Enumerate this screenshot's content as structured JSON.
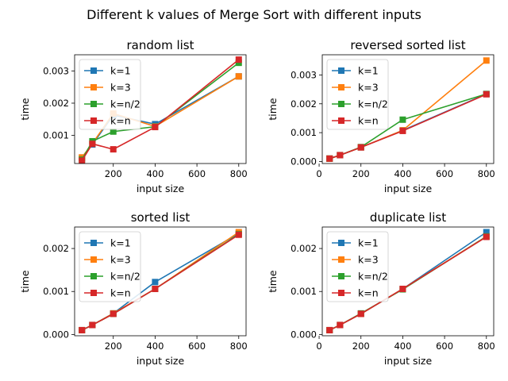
{
  "figure_title": "Different k values of Merge Sort with different inputs",
  "colors": {
    "k=1": "#1f77b4",
    "k=3": "#ff7f0e",
    "k=n/2": "#2ca02c",
    "k=n": "#d62728"
  },
  "chart_data": [
    {
      "type": "line",
      "title": "random list",
      "xlabel": "input size",
      "ylabel": "time",
      "x": [
        50,
        100,
        200,
        400,
        800
      ],
      "xlim": [
        15,
        835
      ],
      "ylim": [
        0.00013,
        0.0035
      ],
      "xticks": [
        200,
        400,
        600,
        800
      ],
      "xtick_labels": [
        "200",
        "400",
        "600",
        "800"
      ],
      "yticks": [
        0.001,
        0.002,
        0.003
      ],
      "ytick_labels": [
        "0.001",
        "0.002",
        "0.003"
      ],
      "legend": "top-left",
      "series": [
        {
          "name": "k=1",
          "color": "#1f77b4",
          "values": [
            0.0003,
            0.00072,
            0.00163,
            0.00135,
            0.00283
          ]
        },
        {
          "name": "k=3",
          "color": "#ff7f0e",
          "values": [
            0.00032,
            0.00075,
            0.00168,
            0.00128,
            0.00283
          ]
        },
        {
          "name": "k=n/2",
          "color": "#2ca02c",
          "values": [
            0.00025,
            0.00082,
            0.00112,
            0.00127,
            0.00325
          ]
        },
        {
          "name": "k=n",
          "color": "#d62728",
          "values": [
            0.00022,
            0.00074,
            0.00057,
            0.00126,
            0.00335
          ]
        }
      ]
    },
    {
      "type": "line",
      "title": "reversed sorted list",
      "xlabel": "input size",
      "ylabel": "time",
      "x": [
        50,
        100,
        200,
        400,
        800
      ],
      "xlim": [
        15,
        835
      ],
      "ylim": [
        -7e-05,
        0.0037
      ],
      "xticks": [
        0,
        200,
        400,
        600,
        800
      ],
      "xtick_labels": [
        "0",
        "200",
        "400",
        "600",
        "800"
      ],
      "yticks": [
        0,
        0.001,
        0.002,
        0.003
      ],
      "ytick_labels": [
        "0.000",
        "0.001",
        "0.002",
        "0.003"
      ],
      "legend": "top-left",
      "series": [
        {
          "name": "k=1",
          "color": "#1f77b4",
          "values": [
            0.0001,
            0.00022,
            0.00049,
            0.00108,
            0.00234
          ]
        },
        {
          "name": "k=3",
          "color": "#ff7f0e",
          "values": [
            0.0001,
            0.00022,
            0.00049,
            0.00108,
            0.0035
          ]
        },
        {
          "name": "k=n/2",
          "color": "#2ca02c",
          "values": [
            0.0001,
            0.00022,
            0.0005,
            0.00145,
            0.00234
          ]
        },
        {
          "name": "k=n",
          "color": "#d62728",
          "values": [
            0.0001,
            0.00022,
            0.00049,
            0.00106,
            0.00233
          ]
        }
      ]
    },
    {
      "type": "line",
      "title": "sorted list",
      "xlabel": "input size",
      "ylabel": "time",
      "x": [
        50,
        100,
        200,
        400,
        800
      ],
      "xlim": [
        15,
        835
      ],
      "ylim": [
        -3e-05,
        0.0025
      ],
      "xticks": [
        200,
        400,
        600,
        800
      ],
      "xtick_labels": [
        "200",
        "400",
        "600",
        "800"
      ],
      "yticks": [
        0,
        0.001,
        0.002
      ],
      "ytick_labels": [
        "0.000",
        "0.001",
        "0.002"
      ],
      "legend": "top-left",
      "series": [
        {
          "name": "k=1",
          "color": "#1f77b4",
          "values": [
            0.0001,
            0.00022,
            0.00049,
            0.00122,
            0.00235
          ]
        },
        {
          "name": "k=3",
          "color": "#ff7f0e",
          "values": [
            0.0001,
            0.00022,
            0.00049,
            0.00106,
            0.00238
          ]
        },
        {
          "name": "k=n/2",
          "color": "#2ca02c",
          "values": [
            0.0001,
            0.00022,
            0.00048,
            0.00106,
            0.00233
          ]
        },
        {
          "name": "k=n",
          "color": "#d62728",
          "values": [
            0.0001,
            0.00022,
            0.00048,
            0.00106,
            0.00232
          ]
        }
      ]
    },
    {
      "type": "line",
      "title": "duplicate list",
      "xlabel": "input size",
      "ylabel": "time",
      "x": [
        50,
        100,
        200,
        400,
        800
      ],
      "xlim": [
        15,
        835
      ],
      "ylim": [
        -3e-05,
        0.0025
      ],
      "xticks": [
        0,
        200,
        400,
        600,
        800
      ],
      "xtick_labels": [
        "0",
        "200",
        "400",
        "600",
        "800"
      ],
      "yticks": [
        0,
        0.001,
        0.002
      ],
      "ytick_labels": [
        "0.000",
        "0.001",
        "0.002"
      ],
      "legend": "top-left",
      "series": [
        {
          "name": "k=1",
          "color": "#1f77b4",
          "values": [
            0.0001,
            0.00022,
            0.00048,
            0.00106,
            0.00238
          ]
        },
        {
          "name": "k=3",
          "color": "#ff7f0e",
          "values": [
            0.0001,
            0.00022,
            0.00048,
            0.00106,
            0.00228
          ]
        },
        {
          "name": "k=n/2",
          "color": "#2ca02c",
          "values": [
            0.0001,
            0.00022,
            0.00049,
            0.00105,
            0.00228
          ]
        },
        {
          "name": "k=n",
          "color": "#d62728",
          "values": [
            0.0001,
            0.00022,
            0.00048,
            0.00106,
            0.00227
          ]
        }
      ]
    }
  ]
}
